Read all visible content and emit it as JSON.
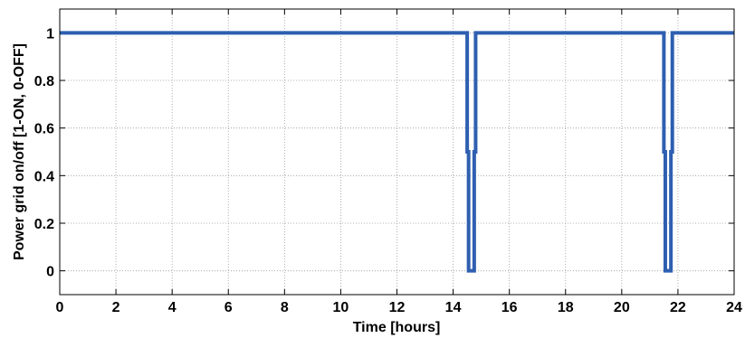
{
  "chart_data": {
    "type": "line",
    "xlabel": "Time [hours]",
    "ylabel": "Power grid on/off [1-ON, 0-OFF]",
    "xlim": [
      0,
      24
    ],
    "ylim": [
      -0.1,
      1.1
    ],
    "xticks": [
      0,
      2,
      4,
      6,
      8,
      10,
      12,
      14,
      16,
      18,
      20,
      22,
      24
    ],
    "xtick_labels": [
      "0",
      "2",
      "4",
      "6",
      "8",
      "10",
      "12",
      "14",
      "16",
      "18",
      "20",
      "22",
      "24"
    ],
    "yticks": [
      0,
      0.2,
      0.4,
      0.6,
      0.8,
      1
    ],
    "ytick_labels": [
      "0",
      "0.2",
      "0.4",
      "0.6",
      "0.8",
      "1"
    ],
    "grid": true,
    "series": [
      {
        "color": "#2E5FB0",
        "x": [
          0,
          14.5,
          14.5,
          14.55,
          14.55,
          14.75,
          14.75,
          14.8,
          14.8,
          21.5,
          21.5,
          21.55,
          21.55,
          21.75,
          21.75,
          21.8,
          21.8,
          24
        ],
        "y": [
          1,
          1,
          0.5,
          0.5,
          0,
          0,
          0.5,
          0.5,
          1,
          1,
          0.5,
          0.5,
          0,
          0,
          0.5,
          0.5,
          1,
          1
        ]
      }
    ]
  }
}
